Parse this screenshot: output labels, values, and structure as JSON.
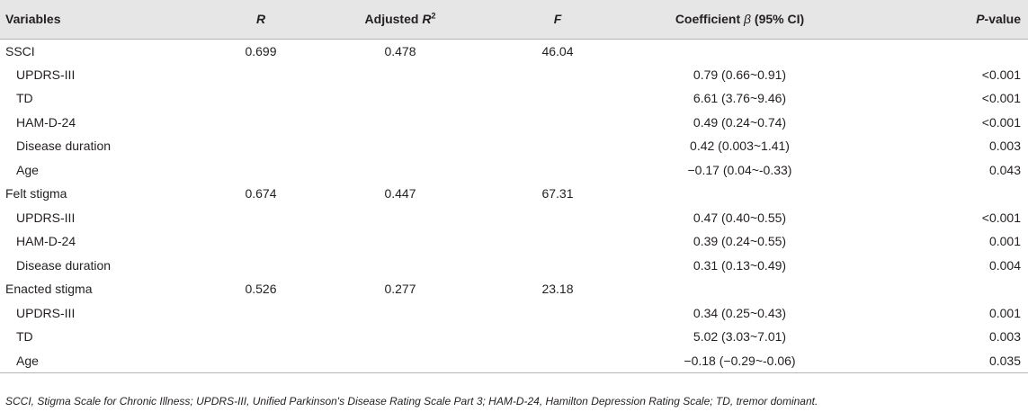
{
  "headers": {
    "variables": "Variables",
    "r": "R",
    "adj_r2_text": "Adjusted ",
    "adj_r2_r": "R",
    "adj_r2_sup": "2",
    "f": "F",
    "coef_text": "Coefficient ",
    "coef_beta": "β",
    "coef_ci": " (95% CI)",
    "p_italic": "P",
    "p_rest": "-value"
  },
  "rows": [
    {
      "variable": "SSCI",
      "sub": false,
      "r": "0.699",
      "adj_r2": "0.478",
      "f": "46.04",
      "coef": "",
      "p": ""
    },
    {
      "variable": "UPDRS-III",
      "sub": true,
      "r": "",
      "adj_r2": "",
      "f": "",
      "coef": "0.79 (0.66~0.91)",
      "p": "<0.001"
    },
    {
      "variable": "TD",
      "sub": true,
      "r": "",
      "adj_r2": "",
      "f": "",
      "coef": "6.61 (3.76~9.46)",
      "p": "<0.001"
    },
    {
      "variable": "HAM-D-24",
      "sub": true,
      "r": "",
      "adj_r2": "",
      "f": "",
      "coef": "0.49 (0.24~0.74)",
      "p": "<0.001"
    },
    {
      "variable": "Disease duration",
      "sub": true,
      "r": "",
      "adj_r2": "",
      "f": "",
      "coef": "0.42 (0.003~1.41)",
      "p": "0.003"
    },
    {
      "variable": "Age",
      "sub": true,
      "r": "",
      "adj_r2": "",
      "f": "",
      "coef": "−0.17 (0.04~-0.33)",
      "p": "0.043"
    },
    {
      "variable": "Felt stigma",
      "sub": false,
      "r": "0.674",
      "adj_r2": "0.447",
      "f": "67.31",
      "coef": "",
      "p": ""
    },
    {
      "variable": "UPDRS-III",
      "sub": true,
      "r": "",
      "adj_r2": "",
      "f": "",
      "coef": "0.47 (0.40~0.55)",
      "p": "<0.001"
    },
    {
      "variable": "HAM-D-24",
      "sub": true,
      "r": "",
      "adj_r2": "",
      "f": "",
      "coef": "0.39 (0.24~0.55)",
      "p": "0.001"
    },
    {
      "variable": "Disease duration",
      "sub": true,
      "r": "",
      "adj_r2": "",
      "f": "",
      "coef": "0.31 (0.13~0.49)",
      "p": "0.004"
    },
    {
      "variable": "Enacted stigma",
      "sub": false,
      "r": "0.526",
      "adj_r2": "0.277",
      "f": "23.18",
      "coef": "",
      "p": ""
    },
    {
      "variable": "UPDRS-III",
      "sub": true,
      "r": "",
      "adj_r2": "",
      "f": "",
      "coef": "0.34 (0.25~0.43)",
      "p": "0.001"
    },
    {
      "variable": "TD",
      "sub": true,
      "r": "",
      "adj_r2": "",
      "f": "",
      "coef": "5.02 (3.03~7.01)",
      "p": "0.003"
    },
    {
      "variable": "Age",
      "sub": true,
      "r": "",
      "adj_r2": "",
      "f": "",
      "coef": "−0.18 (−0.29~-0.06)",
      "p": "0.035"
    }
  ],
  "footnote": "SCCI, Stigma Scale for Chronic Illness; UPDRS-III, Unified Parkinson's Disease Rating Scale Part 3; HAM-D-24, Hamilton Depression Rating Scale; TD, tremor dominant."
}
